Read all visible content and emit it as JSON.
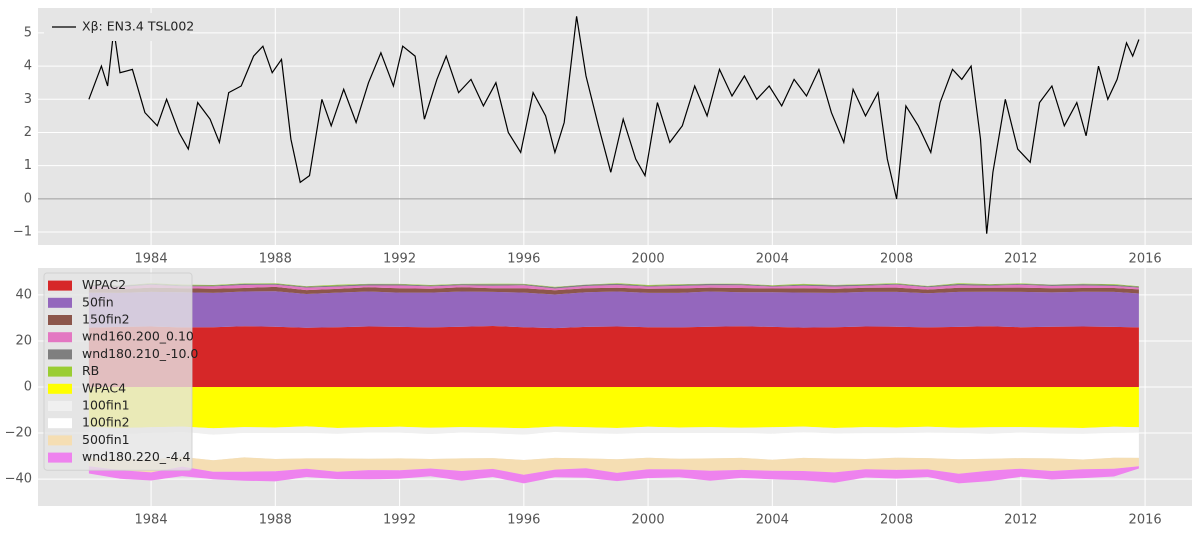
{
  "chart_data": [
    {
      "type": "line",
      "grid": true,
      "legend": "upper left",
      "xlim": [
        1980.36,
        2017.51
      ],
      "xticks": [
        1984,
        1988,
        1992,
        1996,
        2000,
        2004,
        2008,
        2012,
        2016
      ],
      "ylim": [
        -1.39,
        5.75
      ],
      "yticks": [
        {
          "value": -1,
          "label": "−1"
        },
        0,
        1,
        2,
        3,
        4,
        5
      ],
      "series": [
        {
          "name": "Xβ: EN3.4 TSL002",
          "color": "#000000",
          "x": [
            1982.0,
            1982.4,
            1982.6,
            1982.8,
            1983.0,
            1983.4,
            1983.8,
            1984.2,
            1984.5,
            1984.9,
            1985.2,
            1985.5,
            1985.9,
            1986.2,
            1986.5,
            1986.9,
            1987.3,
            1987.6,
            1987.9,
            1988.2,
            1988.5,
            1988.8,
            1989.1,
            1989.5,
            1989.8,
            1990.2,
            1990.6,
            1991.0,
            1991.4,
            1991.8,
            1992.1,
            1992.5,
            1992.8,
            1993.2,
            1993.5,
            1993.9,
            1994.3,
            1994.7,
            1995.1,
            1995.5,
            1995.9,
            1996.3,
            1996.7,
            1997.0,
            1997.3,
            1997.7,
            1998.0,
            1998.4,
            1998.8,
            1999.2,
            1999.6,
            1999.9,
            2000.3,
            2000.7,
            2001.1,
            2001.5,
            2001.9,
            2002.3,
            2002.7,
            2003.1,
            2003.5,
            2003.9,
            2004.3,
            2004.7,
            2005.1,
            2005.5,
            2005.9,
            2006.3,
            2006.6,
            2007.0,
            2007.4,
            2007.7,
            2008.0,
            2008.3,
            2008.7,
            2009.1,
            2009.4,
            2009.8,
            2010.1,
            2010.4,
            2010.7,
            2010.9,
            2011.1,
            2011.5,
            2011.9,
            2012.3,
            2012.6,
            2013.0,
            2013.4,
            2013.8,
            2014.1,
            2014.5,
            2014.8,
            2015.1,
            2015.4,
            2015.6,
            2015.8
          ],
          "values": [
            3.0,
            4.0,
            3.4,
            5.1,
            3.8,
            3.9,
            2.6,
            2.2,
            3.0,
            2.0,
            1.5,
            2.9,
            2.4,
            1.7,
            3.2,
            3.4,
            4.3,
            4.6,
            3.8,
            4.2,
            1.8,
            0.5,
            0.7,
            3.0,
            2.2,
            3.3,
            2.3,
            3.5,
            4.4,
            3.4,
            4.6,
            4.3,
            2.4,
            3.6,
            4.3,
            3.2,
            3.6,
            2.8,
            3.5,
            2.0,
            1.4,
            3.2,
            2.5,
            1.4,
            2.3,
            5.5,
            3.7,
            2.2,
            0.8,
            2.4,
            1.2,
            0.7,
            2.9,
            1.7,
            2.2,
            3.4,
            2.5,
            3.9,
            3.1,
            3.7,
            3.0,
            3.4,
            2.8,
            3.6,
            3.1,
            3.9,
            2.6,
            1.7,
            3.3,
            2.5,
            3.2,
            1.2,
            0.0,
            2.8,
            2.2,
            1.4,
            2.9,
            3.9,
            3.6,
            4.0,
            1.8,
            -1.05,
            0.8,
            3.0,
            1.5,
            1.1,
            2.9,
            3.4,
            2.2,
            2.9,
            1.9,
            4.0,
            3.0,
            3.6,
            4.7,
            4.3,
            4.8
          ]
        }
      ]
    },
    {
      "type": "area",
      "stacked": true,
      "grid": true,
      "legend": "upper left",
      "xlim": [
        1980.36,
        2017.51
      ],
      "xticks": [
        1984,
        1988,
        1992,
        1996,
        2000,
        2004,
        2008,
        2012,
        2016
      ],
      "ylim": [
        -51.7,
        51.7
      ],
      "yticks": [
        {
          "value": -40,
          "label": "−40"
        },
        {
          "value": -20,
          "label": "−20"
        },
        0,
        20,
        40
      ],
      "x": [
        1982,
        1983,
        1984,
        1985,
        1986,
        1987,
        1988,
        1989,
        1990,
        1991,
        1992,
        1993,
        1994,
        1995,
        1996,
        1997,
        1998,
        1999,
        2000,
        2001,
        2002,
        2003,
        2004,
        2005,
        2006,
        2007,
        2008,
        2009,
        2010,
        2011,
        2012,
        2013,
        2014,
        2015,
        2015.8
      ],
      "series": [
        {
          "name": "WPAC2",
          "color": "#d62728",
          "values": [
            25.8,
            26.1,
            26.3,
            25.9,
            26.0,
            26.4,
            26.2,
            25.7,
            26.0,
            26.3,
            26.1,
            25.9,
            26.2,
            26.5,
            26.0,
            25.6,
            26.1,
            26.3,
            26.0,
            25.9,
            26.2,
            26.4,
            26.1,
            25.8,
            26.0,
            26.3,
            26.2,
            25.9,
            26.1,
            26.4,
            26.0,
            26.2,
            26.3,
            26.1,
            25.9
          ]
        },
        {
          "name": "50fin",
          "color": "#9467bd",
          "values": [
            15.2,
            14.8,
            15.0,
            15.3,
            14.9,
            15.1,
            15.4,
            14.7,
            15.0,
            15.2,
            14.9,
            15.1,
            15.3,
            14.8,
            15.0,
            14.6,
            15.1,
            15.2,
            14.9,
            15.0,
            15.3,
            14.8,
            15.1,
            15.2,
            14.9,
            15.0,
            15.1,
            14.8,
            15.2,
            15.0,
            15.3,
            14.9,
            15.1,
            15.2,
            14.7
          ]
        },
        {
          "name": "150fin2",
          "color": "#8c564b",
          "values": [
            1.8,
            1.6,
            1.9,
            1.7,
            1.8,
            1.5,
            1.9,
            1.7,
            1.6,
            1.8,
            1.9,
            1.7,
            1.8,
            1.6,
            1.9,
            1.8,
            1.7,
            1.6,
            1.8,
            1.9,
            1.7,
            1.8,
            1.6,
            1.9,
            1.7,
            1.8,
            1.9,
            1.6,
            1.8,
            1.7,
            1.9,
            1.8,
            1.6,
            1.7,
            1.8
          ]
        },
        {
          "name": "wnd160.200_0.10",
          "color": "#e377c2",
          "values": [
            1.1,
            0.9,
            1.2,
            0.8,
            1.0,
            1.3,
            0.9,
            1.1,
            1.0,
            0.8,
            1.2,
            1.0,
            0.9,
            1.1,
            1.3,
            0.8,
            1.0,
            1.2,
            0.9,
            1.1,
            1.0,
            1.2,
            0.8,
            1.1,
            1.0,
            0.9,
            1.3,
            1.0,
            1.1,
            0.9,
            1.2,
            1.0,
            1.1,
            0.9,
            0.8
          ]
        },
        {
          "name": "wnd180.210_-10.0",
          "color": "#7f7f7f",
          "values": [
            0.4,
            0.6,
            0.5,
            0.5,
            0.4,
            0.6,
            0.5,
            0.4,
            0.5,
            0.6,
            0.5,
            0.4,
            0.5,
            0.6,
            0.4,
            0.5,
            0.5,
            0.6,
            0.4,
            0.5,
            0.6,
            0.5,
            0.4,
            0.5,
            0.6,
            0.5,
            0.4,
            0.5,
            0.6,
            0.5,
            0.4,
            0.5,
            0.6,
            0.5,
            0.4
          ]
        },
        {
          "name": "RB",
          "color": "#9acd32",
          "values": [
            0.2,
            0.1,
            0.2,
            0.3,
            0.2,
            0.1,
            0.2,
            0.2,
            0.3,
            0.1,
            0.2,
            0.2,
            0.1,
            0.3,
            0.2,
            0.2,
            0.1,
            0.2,
            0.3,
            0.2,
            0.1,
            0.2,
            0.2,
            0.3,
            0.1,
            0.2,
            0.2,
            0.1,
            0.3,
            0.2,
            0.2,
            0.1,
            0.2,
            0.3,
            0.2
          ]
        },
        {
          "name": "WPAC4",
          "color": "#ffff00",
          "values": [
            -17.3,
            -17.8,
            -17.5,
            -17.2,
            -17.9,
            -17.4,
            -17.6,
            -17.1,
            -17.8,
            -17.5,
            -17.3,
            -17.7,
            -17.4,
            -17.6,
            -17.9,
            -17.2,
            -17.5,
            -17.8,
            -17.3,
            -17.6,
            -17.4,
            -17.7,
            -17.5,
            -17.2,
            -17.8,
            -17.4,
            -17.6,
            -17.3,
            -17.7,
            -17.5,
            -17.4,
            -17.6,
            -17.8,
            -17.3,
            -17.5
          ]
        },
        {
          "name": "100fin1",
          "color": "#f0f0f0",
          "values": [
            -2.4,
            -2.7,
            -2.5,
            -2.3,
            -2.8,
            -2.6,
            -2.4,
            -2.9,
            -2.5,
            -2.3,
            -2.6,
            -2.7,
            -2.4,
            -2.5,
            -2.8,
            -2.3,
            -2.6,
            -2.5,
            -2.7,
            -2.4,
            -2.6,
            -2.3,
            -2.8,
            -2.5,
            -2.4,
            -2.7,
            -2.5,
            -2.6,
            -2.3,
            -2.8,
            -2.4,
            -2.6,
            -2.5,
            -2.7,
            -2.4
          ]
        },
        {
          "name": "100fin2",
          "color": "#ffffff",
          "values": [
            -11.2,
            -10.8,
            -11.5,
            -10.9,
            -11.1,
            -10.6,
            -11.3,
            -11.0,
            -10.7,
            -11.4,
            -11.1,
            -10.9,
            -11.2,
            -10.8,
            -11.0,
            -11.3,
            -10.9,
            -11.1,
            -10.7,
            -11.2,
            -11.0,
            -10.8,
            -11.3,
            -11.1,
            -10.9,
            -11.2,
            -10.6,
            -11.0,
            -11.4,
            -10.9,
            -11.1,
            -10.8,
            -11.2,
            -10.7,
            -10.9
          ]
        },
        {
          "name": "500fin1",
          "color": "#f5deb3",
          "values": [
            -3.5,
            -4.8,
            -5.6,
            -4.2,
            -5.0,
            -6.2,
            -5.3,
            -4.5,
            -5.8,
            -4.9,
            -5.2,
            -4.1,
            -5.5,
            -4.7,
            -6.4,
            -5.1,
            -4.3,
            -5.9,
            -5.0,
            -4.6,
            -5.4,
            -5.2,
            -4.8,
            -5.7,
            -6.0,
            -4.4,
            -5.3,
            -4.9,
            -6.3,
            -5.1,
            -4.6,
            -5.5,
            -4.2,
            -4.8,
            -3.6
          ]
        },
        {
          "name": "wnd180.220_-4.4",
          "color": "#ee82ee",
          "values": [
            -3.2,
            -3.8,
            -3.5,
            -4.1,
            -3.3,
            -3.9,
            -4.4,
            -3.6,
            -3.2,
            -4.0,
            -3.7,
            -3.4,
            -4.2,
            -3.5,
            -3.8,
            -3.3,
            -4.1,
            -3.6,
            -3.9,
            -3.4,
            -4.3,
            -3.5,
            -3.7,
            -4.0,
            -4.5,
            -3.6,
            -3.8,
            -3.3,
            -4.2,
            -4.6,
            -3.5,
            -3.7,
            -3.9,
            -3.4,
            -1.0
          ]
        }
      ]
    }
  ]
}
